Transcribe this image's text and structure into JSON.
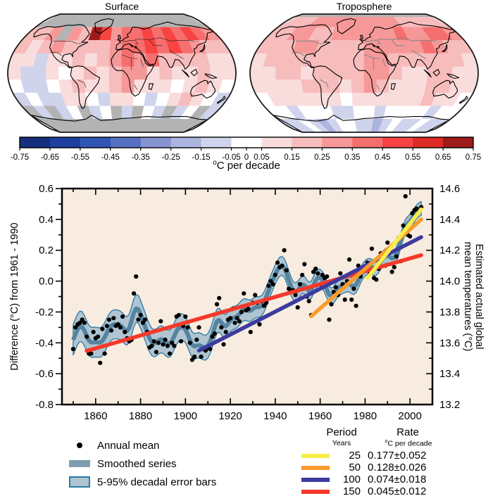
{
  "chart_data": {
    "maps": {
      "surface": {
        "title": "Surface",
        "grid": [
          "GGGGGGGGGGGGGGGGGG",
          "bbcGcbgecddedededc",
          "babcbbbbcddededcbb",
          "aaAaababcdcdbbbbaa",
          "aAAa0ababccabaabaa",
          "0AA0abaabcaaa0aba0",
          "A0AAaa0Aaa0A0aba0A",
          "GAGA0GA0GAG0AGA0GA",
          "GGGGGGGGGGGGGGGGGG"
        ]
      },
      "troposphere": {
        "title": "Troposphere",
        "polar_cap_no_data": true,
        "grid": [
          "bbbccccccccccbbbbb",
          "bbccbbccccccdccddc",
          "bbbccbbbbcccccdcbb",
          "abbbbbbbbccbbbbbba",
          "aabbabbbbccbaabbaa",
          "aaaabbbabcbaaabbaa",
          "0aaaaaa0aaaaaabaa0",
          "00A000AA00A0000A00",
          "AA0ABA00AABA0AA0AA"
        ]
      },
      "bins": {
        "G": null,
        "0": 0.0,
        "a": 0.1,
        "b": 0.2,
        "c": 0.3,
        "d": 0.4,
        "e": 0.5,
        "f": 0.6,
        "g": 0.7,
        "A": -0.1,
        "B": -0.2,
        "C": -0.3
      },
      "no_data_color": "#b3b3b3",
      "units": "°C per decade"
    },
    "colorbar": {
      "caption": "C per decade",
      "caption_prefix": "o",
      "tick_labels": [
        "-0.75",
        "-0.65",
        "-0.55",
        "-0.45",
        "-0.35",
        "-0.25",
        "-0.15",
        "-0.05",
        "0",
        "0.05",
        "0.15",
        "0.25",
        "0.35",
        "0.45",
        "0.55",
        "0.65",
        "0.75"
      ],
      "segment_colors": [
        "#162e7e",
        "#1d3f9e",
        "#2f55b5",
        "#5570c1",
        "#8593cf",
        "#abb4dd",
        "#cfd4ec",
        "#ffffff",
        "#f9dcdc",
        "#f7bcbc",
        "#f69898",
        "#f66f6f",
        "#f74442",
        "#dc2a24",
        "#9e1b1b"
      ]
    },
    "timeseries": {
      "type": "scatter",
      "x_range": [
        1845,
        2010
      ],
      "x_major_ticks": [
        1860,
        1880,
        1900,
        1920,
        1940,
        1960,
        1980,
        2000
      ],
      "x_minor_step": 10,
      "left_axis": {
        "label": "Difference (°C) from 1961 - 1990",
        "range": [
          -0.8,
          0.6
        ],
        "major_step": 0.2,
        "minor_step": 0.1
      },
      "right_axis": {
        "label_lines": [
          "Estimated actual global",
          "mean temperatures (°C)"
        ],
        "range": [
          13.2,
          14.6
        ],
        "major_step": 0.2,
        "minor_step": 0.1,
        "anomaly_offset": 14.0
      },
      "annual_series": {
        "name": "Annual mean",
        "start_year": 1850,
        "values": [
          -0.44,
          -0.3,
          -0.28,
          -0.27,
          -0.25,
          -0.27,
          -0.36,
          -0.47,
          -0.47,
          -0.33,
          -0.37,
          -0.36,
          -0.53,
          -0.31,
          -0.47,
          -0.29,
          -0.25,
          -0.32,
          -0.24,
          -0.29,
          -0.28,
          -0.3,
          -0.23,
          -0.33,
          -0.37,
          -0.39,
          -0.38,
          -0.08,
          0.03,
          -0.25,
          -0.22,
          -0.27,
          -0.25,
          -0.33,
          -0.43,
          -0.42,
          -0.39,
          -0.46,
          -0.4,
          -0.26,
          -0.41,
          -0.38,
          -0.42,
          -0.47,
          -0.4,
          -0.42,
          -0.23,
          -0.22,
          -0.39,
          -0.29,
          -0.23,
          -0.3,
          -0.4,
          -0.51,
          -0.49,
          -0.38,
          -0.3,
          -0.49,
          -0.44,
          -0.45,
          -0.43,
          -0.44,
          -0.36,
          -0.34,
          -0.15,
          -0.11,
          -0.3,
          -0.41,
          -0.33,
          -0.25,
          -0.24,
          -0.18,
          -0.27,
          -0.24,
          -0.26,
          -0.2,
          -0.08,
          -0.19,
          -0.18,
          -0.33,
          -0.14,
          -0.09,
          -0.14,
          -0.28,
          -0.13,
          -0.16,
          -0.14,
          -0.03,
          0.0,
          -0.02,
          0.04,
          0.12,
          0.09,
          0.1,
          0.2,
          0.07,
          -0.05,
          -0.06,
          -0.06,
          -0.09,
          -0.17,
          -0.02,
          0.04,
          0.11,
          -0.1,
          -0.13,
          -0.22,
          0.06,
          0.08,
          0.05,
          -0.02,
          0.04,
          0.02,
          0.03,
          -0.25,
          -0.15,
          -0.07,
          -0.04,
          -0.09,
          0.05,
          -0.02,
          -0.12,
          0.0,
          0.14,
          -0.12,
          -0.05,
          -0.16,
          0.1,
          0.03,
          0.09,
          0.08,
          0.12,
          0.06,
          0.21,
          0.02,
          0.01,
          0.08,
          0.18,
          0.18,
          0.1,
          0.25,
          0.21,
          0.06,
          0.09,
          0.16,
          0.28,
          0.13,
          0.36,
          0.55,
          0.3,
          0.29,
          0.44,
          0.46,
          0.47,
          0.45,
          0.48
        ]
      },
      "smoothed_series": {
        "name": "Smoothed series",
        "band_name": "5-95% decadal error bars",
        "band_halfwidth": [
          [
            1850,
            0.1
          ],
          [
            1880,
            0.09
          ],
          [
            1900,
            0.085
          ],
          [
            1920,
            0.075
          ],
          [
            1940,
            0.062
          ],
          [
            1960,
            0.055
          ],
          [
            1980,
            0.05
          ],
          [
            2005,
            0.045
          ]
        ]
      },
      "trend_lines": [
        {
          "period_years": "25",
          "start_year": 1981,
          "end_year": 2005,
          "start_value": 0.02,
          "end_value": 0.465,
          "color": "#f8ee49",
          "rate": "0.177±0.052"
        },
        {
          "period_years": "50",
          "start_year": 1956,
          "end_year": 2005,
          "start_value": -0.228,
          "end_value": 0.4,
          "color": "#f89b2d",
          "rate": "0.128±0.026"
        },
        {
          "period_years": "100",
          "start_year": 1906,
          "end_year": 2005,
          "start_value": -0.45,
          "end_value": 0.285,
          "color": "#3d3b9f",
          "rate": "0.074±0.018"
        },
        {
          "period_years": "150",
          "start_year": 1856,
          "end_year": 2005,
          "start_value": -0.452,
          "end_value": 0.168,
          "color": "#f5392b",
          "rate": "0.045±0.012"
        }
      ],
      "colors": {
        "plot_bg": "#f7ecdf",
        "dot": "#000000",
        "smoothed_line": "#55849f",
        "band_fill": "#b0c5d1",
        "band_edge": "#2a7aa5",
        "frame": "#000000"
      }
    },
    "legend": [
      {
        "label": "Annual mean"
      },
      {
        "label": "Smoothed series"
      },
      {
        "label": "5-95% decadal error bars"
      }
    ],
    "rate_table": {
      "col_period_header": "Period",
      "col_rate_header": "Rate",
      "col_period_sub": "Years",
      "col_rate_sub": "C  per decade",
      "col_rate_sub_prefix": "o",
      "rows": [
        {
          "period": "25",
          "rate": "0.177±0.052",
          "color": "#f8ee49"
        },
        {
          "period": "50",
          "rate": "0.128±0.026",
          "color": "#f89b2d"
        },
        {
          "period": "100",
          "rate": "0.074±0.018",
          "color": "#3d3b9f"
        },
        {
          "period": "150",
          "rate": "0.045±0.012",
          "color": "#f5392b"
        }
      ]
    }
  }
}
